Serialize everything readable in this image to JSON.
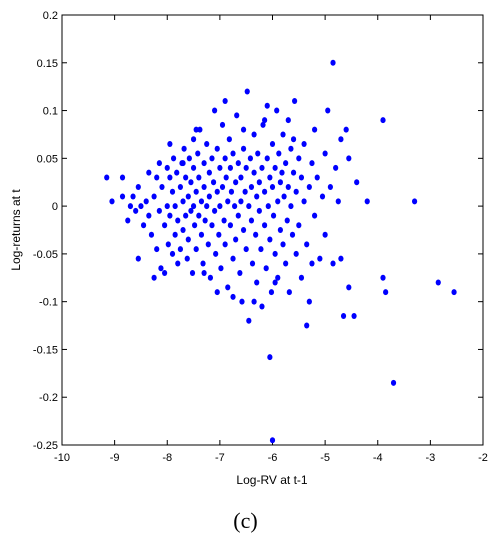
{
  "chart_data": {
    "type": "scatter",
    "xlabel": "Log-RV at t-1",
    "ylabel": "Log-returns at t",
    "xlim": [
      -10,
      -2
    ],
    "ylim": [
      -0.25,
      0.2
    ],
    "xticks": [
      -10,
      -9,
      -8,
      -7,
      -6,
      -5,
      -4,
      -3,
      -2
    ],
    "yticks": [
      -0.25,
      -0.2,
      -0.15,
      -0.1,
      -0.05,
      0,
      0.05,
      0.1,
      0.15,
      0.2
    ],
    "xtick_labels": [
      "-10",
      "-9",
      "-8",
      "-7",
      "-6",
      "-5",
      "-4",
      "-3",
      "-2"
    ],
    "ytick_labels": [
      "-0.25",
      "-0.2",
      "-0.15",
      "-0.1",
      "-0.05",
      "0",
      "0.05",
      "0.1",
      "0.15",
      "0.2"
    ],
    "grid": false,
    "marker_color": "#0000ff",
    "series": [
      {
        "points": [
          [
            -9.15,
            0.03
          ],
          [
            -9.05,
            0.005
          ],
          [
            -8.85,
            0.03
          ],
          [
            -8.85,
            0.01
          ],
          [
            -8.75,
            -0.015
          ],
          [
            -8.7,
            0.0
          ],
          [
            -8.65,
            0.01
          ],
          [
            -8.6,
            -0.005
          ],
          [
            -8.55,
            0.02
          ],
          [
            -8.5,
            0.0
          ],
          [
            -8.45,
            -0.02
          ],
          [
            -8.4,
            0.005
          ],
          [
            -8.35,
            0.035
          ],
          [
            -8.35,
            -0.01
          ],
          [
            -8.3,
            -0.03
          ],
          [
            -8.25,
            0.01
          ],
          [
            -8.2,
            0.03
          ],
          [
            -8.2,
            -0.045
          ],
          [
            -8.15,
            0.045
          ],
          [
            -8.15,
            -0.005
          ],
          [
            -8.12,
            -0.065
          ],
          [
            -8.1,
            0.02
          ],
          [
            -8.05,
            -0.02
          ],
          [
            -8.05,
            -0.07
          ],
          [
            -8.0,
            0.04
          ],
          [
            -8.0,
            0.0
          ],
          [
            -7.98,
            -0.04
          ],
          [
            -7.95,
            0.03
          ],
          [
            -7.95,
            -0.01
          ],
          [
            -7.9,
            0.015
          ],
          [
            -7.9,
            -0.05
          ],
          [
            -7.88,
            0.05
          ],
          [
            -7.85,
            0.0
          ],
          [
            -7.85,
            -0.03
          ],
          [
            -7.82,
            0.035
          ],
          [
            -7.8,
            -0.015
          ],
          [
            -7.8,
            -0.06
          ],
          [
            -7.75,
            0.02
          ],
          [
            -7.75,
            -0.045
          ],
          [
            -7.72,
            0.045
          ],
          [
            -7.7,
            0.005
          ],
          [
            -7.7,
            -0.025
          ],
          [
            -7.68,
            0.06
          ],
          [
            -7.65,
            0.03
          ],
          [
            -7.65,
            -0.01
          ],
          [
            -7.62,
            -0.055
          ],
          [
            -7.6,
            0.01
          ],
          [
            -7.6,
            -0.035
          ],
          [
            -7.58,
            0.05
          ],
          [
            -7.55,
            0.025
          ],
          [
            -7.55,
            -0.005
          ],
          [
            -7.52,
            -0.07
          ],
          [
            -7.5,
            0.07
          ],
          [
            -7.5,
            0.04
          ],
          [
            -7.5,
            0.0
          ],
          [
            -7.48,
            -0.02
          ],
          [
            -7.45,
            0.015
          ],
          [
            -7.45,
            -0.045
          ],
          [
            -7.42,
            0.055
          ],
          [
            -7.4,
            0.03
          ],
          [
            -7.4,
            -0.01
          ],
          [
            -7.38,
            0.08
          ],
          [
            -7.35,
            0.005
          ],
          [
            -7.35,
            -0.03
          ],
          [
            -7.32,
            -0.06
          ],
          [
            -7.3,
            0.045
          ],
          [
            -7.3,
            0.02
          ],
          [
            -7.28,
            -0.015
          ],
          [
            -7.25,
            0.065
          ],
          [
            -7.25,
            0.0
          ],
          [
            -7.22,
            -0.04
          ],
          [
            -7.2,
            0.035
          ],
          [
            -7.2,
            0.01
          ],
          [
            -7.18,
            -0.075
          ],
          [
            -7.15,
            0.05
          ],
          [
            -7.15,
            -0.02
          ],
          [
            -7.12,
            0.025
          ],
          [
            -7.1,
            0.1
          ],
          [
            -7.1,
            -0.005
          ],
          [
            -7.08,
            -0.05
          ],
          [
            -7.05,
            0.06
          ],
          [
            -7.05,
            0.015
          ],
          [
            -7.02,
            -0.03
          ],
          [
            -7.0,
            0.04
          ],
          [
            -7.0,
            0.0
          ],
          [
            -6.98,
            -0.065
          ],
          [
            -6.95,
            0.085
          ],
          [
            -6.95,
            0.02
          ],
          [
            -6.92,
            -0.015
          ],
          [
            -6.9,
            0.05
          ],
          [
            -6.9,
            -0.04
          ],
          [
            -6.88,
            0.03
          ],
          [
            -6.85,
            0.005
          ],
          [
            -6.85,
            -0.085
          ],
          [
            -6.82,
            0.07
          ],
          [
            -6.8,
            0.04
          ],
          [
            -6.8,
            -0.02
          ],
          [
            -6.78,
            0.015
          ],
          [
            -6.75,
            -0.055
          ],
          [
            -6.75,
            0.055
          ],
          [
            -6.72,
            0.0
          ],
          [
            -6.7,
            0.025
          ],
          [
            -6.7,
            -0.035
          ],
          [
            -6.68,
            0.095
          ],
          [
            -6.65,
            0.045
          ],
          [
            -6.65,
            -0.01
          ],
          [
            -6.62,
            -0.07
          ],
          [
            -6.6,
            0.03
          ],
          [
            -6.6,
            0.005
          ],
          [
            -6.58,
            -0.1
          ],
          [
            -6.55,
            0.06
          ],
          [
            -6.55,
            -0.025
          ],
          [
            -6.52,
            0.015
          ],
          [
            -6.5,
            0.04
          ],
          [
            -6.5,
            -0.045
          ],
          [
            -6.48,
            0.12
          ],
          [
            -6.45,
            0.0
          ],
          [
            -6.45,
            -0.12
          ],
          [
            -6.42,
            0.05
          ],
          [
            -6.4,
            0.02
          ],
          [
            -6.4,
            -0.015
          ],
          [
            -6.38,
            -0.06
          ],
          [
            -6.35,
            0.035
          ],
          [
            -6.35,
            0.075
          ],
          [
            -6.32,
            -0.03
          ],
          [
            -6.3,
            0.01
          ],
          [
            -6.3,
            -0.08
          ],
          [
            -6.28,
            0.055
          ],
          [
            -6.25,
            -0.005
          ],
          [
            -6.25,
            0.025
          ],
          [
            -6.22,
            -0.045
          ],
          [
            -6.2,
            0.04
          ],
          [
            -6.2,
            -0.105
          ],
          [
            -6.18,
            0.085
          ],
          [
            -6.15,
            0.015
          ],
          [
            -6.15,
            -0.02
          ],
          [
            -6.12,
            -0.065
          ],
          [
            -6.1,
            0.05
          ],
          [
            -6.1,
            0.105
          ],
          [
            -6.08,
            0.0
          ],
          [
            -6.05,
            -0.035
          ],
          [
            -6.05,
            0.03
          ],
          [
            -6.02,
            -0.09
          ],
          [
            -6.0,
            0.065
          ],
          [
            -6.0,
            0.02
          ],
          [
            -5.98,
            -0.01
          ],
          [
            -5.95,
            -0.05
          ],
          [
            -5.95,
            0.04
          ],
          [
            -5.92,
            0.1
          ],
          [
            -5.9,
            0.005
          ],
          [
            -5.9,
            -0.075
          ],
          [
            -5.88,
            0.055
          ],
          [
            -5.85,
            -0.025
          ],
          [
            -5.85,
            0.025
          ],
          [
            -5.82,
            0.035
          ],
          [
            -5.8,
            -0.04
          ],
          [
            -5.8,
            0.075
          ],
          [
            -5.78,
            0.01
          ],
          [
            -5.75,
            -0.06
          ],
          [
            -5.75,
            0.045
          ],
          [
            -5.72,
            -0.015
          ],
          [
            -5.7,
            0.09
          ],
          [
            -5.7,
            0.02
          ],
          [
            -5.68,
            -0.09
          ],
          [
            -5.65,
            0.06
          ],
          [
            -5.65,
            0.0
          ],
          [
            -5.62,
            -0.03
          ],
          [
            -5.6,
            0.035
          ],
          [
            -5.58,
            0.11
          ],
          [
            -5.55,
            -0.05
          ],
          [
            -5.55,
            0.015
          ],
          [
            -5.5,
            0.05
          ],
          [
            -5.5,
            -0.02
          ],
          [
            -5.45,
            0.03
          ],
          [
            -5.45,
            -0.075
          ],
          [
            -5.4,
            0.005
          ],
          [
            -5.4,
            0.065
          ],
          [
            -5.35,
            -0.04
          ],
          [
            -5.3,
            0.02
          ],
          [
            -5.3,
            -0.1
          ],
          [
            -5.25,
            0.045
          ],
          [
            -5.2,
            -0.01
          ],
          [
            -5.2,
            0.08
          ],
          [
            -5.15,
            0.03
          ],
          [
            -5.1,
            -0.055
          ],
          [
            -5.05,
            0.01
          ],
          [
            -5.0,
            0.055
          ],
          [
            -5.0,
            -0.03
          ],
          [
            -4.95,
            0.1
          ],
          [
            -4.9,
            0.02
          ],
          [
            -4.85,
            0.15
          ],
          [
            -4.85,
            -0.06
          ],
          [
            -4.8,
            0.04
          ],
          [
            -4.75,
            0.005
          ],
          [
            -4.7,
            0.07
          ],
          [
            -4.7,
            -0.055
          ],
          [
            -4.65,
            -0.115
          ],
          [
            -4.6,
            0.08
          ],
          [
            -4.55,
            -0.085
          ],
          [
            -4.55,
            0.05
          ],
          [
            -4.45,
            -0.115
          ],
          [
            -4.4,
            0.025
          ],
          [
            -4.2,
            0.005
          ],
          [
            -3.9,
            0.09
          ],
          [
            -3.9,
            -0.075
          ],
          [
            -3.85,
            -0.09
          ],
          [
            -3.7,
            -0.185
          ],
          [
            -3.3,
            0.005
          ],
          [
            -2.85,
            -0.08
          ],
          [
            -2.55,
            -0.09
          ],
          [
            -5.35,
            -0.125
          ],
          [
            -6.05,
            -0.158
          ],
          [
            -6.0,
            -0.245
          ],
          [
            -8.55,
            -0.055
          ],
          [
            -8.25,
            -0.075
          ],
          [
            -7.95,
            0.065
          ],
          [
            -7.7,
            0.045
          ],
          [
            -7.45,
            0.08
          ],
          [
            -7.3,
            -0.07
          ],
          [
            -7.05,
            -0.09
          ],
          [
            -6.9,
            0.11
          ],
          [
            -6.75,
            -0.095
          ],
          [
            -6.55,
            0.08
          ],
          [
            -6.35,
            -0.1
          ],
          [
            -6.15,
            0.09
          ],
          [
            -5.95,
            -0.08
          ],
          [
            -5.6,
            0.07
          ],
          [
            -5.25,
            -0.06
          ]
        ]
      }
    ],
    "panel_label": "(c)"
  }
}
